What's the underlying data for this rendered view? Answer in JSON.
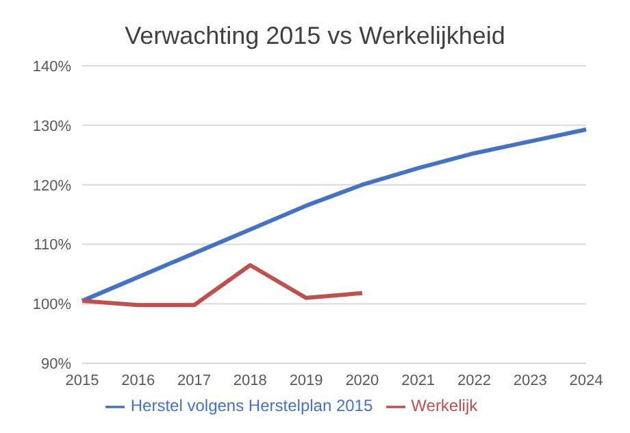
{
  "chart_data": {
    "type": "line",
    "title": "Verwachting 2015 vs Werkelijkheid",
    "categories": [
      "2015",
      "2016",
      "2017",
      "2018",
      "2019",
      "2020",
      "2021",
      "2022",
      "2023",
      "2024"
    ],
    "series": [
      {
        "name": "Herstel volgens Herstelplan 2015",
        "color": "#4472c4",
        "values": [
          100.5,
          104.5,
          108.5,
          112.5,
          116.5,
          120,
          122.8,
          125.3,
          127.3,
          129.3
        ]
      },
      {
        "name": "Werkelijk",
        "color": "#c0504d",
        "values": [
          100.5,
          99.8,
          99.8,
          106.5,
          101,
          101.8,
          null,
          null,
          null,
          null
        ]
      }
    ],
    "ylim": [
      90,
      140
    ],
    "yticks": [
      {
        "value": 90,
        "label": "90%"
      },
      {
        "value": 100,
        "label": "100%"
      },
      {
        "value": 110,
        "label": "110%"
      },
      {
        "value": 120,
        "label": "120%"
      },
      {
        "value": 130,
        "label": "130%"
      },
      {
        "value": 140,
        "label": "140%"
      }
    ],
    "grid": "y",
    "legend": "bottom",
    "marker": "none",
    "line_style": "solid"
  }
}
